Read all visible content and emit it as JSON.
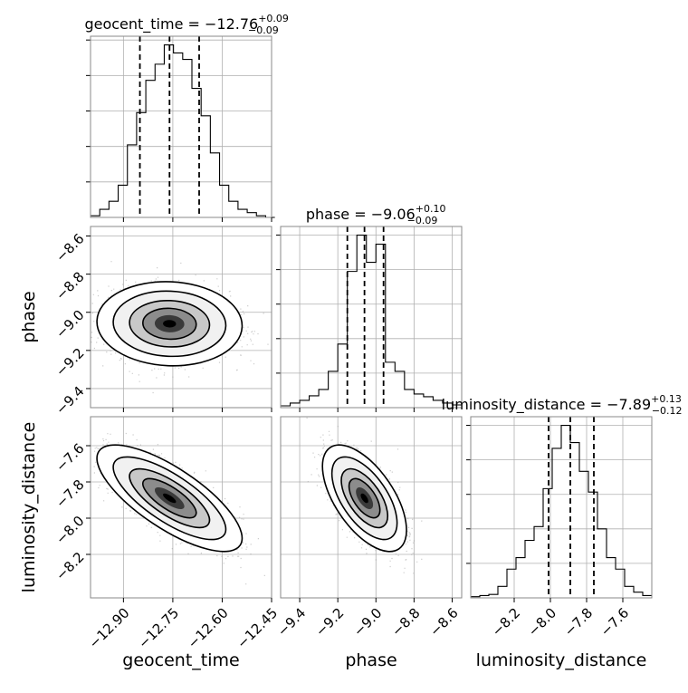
{
  "chart_data": {
    "type": "corner",
    "parameters": [
      "geocent_time",
      "phase",
      "luminosity_distance"
    ],
    "titles": [
      {
        "main": "geocent_time = −12.76",
        "plus": "+0.09",
        "minus": "−0.09"
      },
      {
        "main": "phase = −9.06",
        "plus": "+0.10",
        "minus": "−0.09"
      },
      {
        "main": "luminosity_distance = −7.89",
        "plus": "+0.13",
        "minus": "−0.12"
      }
    ],
    "xlabels": [
      "geocent_time",
      "phase",
      "luminosity_distance"
    ],
    "ylabels": [
      "phase",
      "luminosity_distance"
    ],
    "ranges": [
      [
        -13.0,
        -12.45
      ],
      [
        -9.5,
        -8.55
      ],
      [
        -8.44,
        -7.44
      ]
    ],
    "ticks": {
      "geocent_time": [
        -12.9,
        -12.75,
        -12.6,
        -12.45
      ],
      "phase": [
        -9.4,
        -9.2,
        -9.0,
        -8.8,
        -8.6
      ],
      "luminosity_distance": [
        -8.2,
        -8.0,
        -7.8,
        -7.6
      ]
    },
    "tick_labels": {
      "geocent_time": [
        "−12.90",
        "−12.75",
        "−12.60",
        "−12.45"
      ],
      "phase": [
        "−9.4",
        "−9.2",
        "−9.0",
        "−8.8",
        "−8.6"
      ],
      "luminosity_distance": [
        "−8.2",
        "−8.0",
        "−7.8",
        "−7.6"
      ]
    },
    "quantiles": {
      "geocent_time": [
        -12.85,
        -12.76,
        -12.67
      ],
      "phase": [
        -9.15,
        -9.06,
        -8.96
      ],
      "luminosity_distance": [
        -8.01,
        -7.89,
        -7.76
      ]
    },
    "histograms": {
      "geocent_time": {
        "edges": [
          -13.0,
          -12.972,
          -12.944,
          -12.916,
          -12.888,
          -12.86,
          -12.832,
          -12.804,
          -12.776,
          -12.748,
          -12.72,
          -12.692,
          -12.664,
          -12.636,
          -12.608,
          -12.58,
          -12.552,
          -12.524,
          -12.496,
          -12.468,
          -12.44
        ],
        "counts": [
          1,
          5,
          10,
          20,
          45,
          65,
          85,
          95,
          107,
          102,
          98,
          80,
          63,
          40,
          20,
          10,
          5,
          3,
          1,
          0
        ]
      },
      "phase": {
        "edges": [
          -9.5,
          -9.45,
          -9.4,
          -9.35,
          -9.3,
          -9.25,
          -9.2,
          -9.15,
          -9.1,
          -9.05,
          -9.0,
          -8.95,
          -8.9,
          -8.85,
          -8.8,
          -8.75,
          -8.7,
          -8.65,
          -8.6,
          -8.55
        ],
        "counts": [
          2,
          5,
          8,
          13,
          20,
          40,
          70,
          150,
          190,
          160,
          180,
          50,
          40,
          20,
          15,
          12,
          8,
          5,
          3
        ]
      },
      "luminosity_distance": {
        "edges": [
          -8.44,
          -8.39,
          -8.34,
          -8.29,
          -8.24,
          -8.19,
          -8.14,
          -8.09,
          -8.04,
          -7.99,
          -7.94,
          -7.89,
          -7.84,
          -7.79,
          -7.74,
          -7.69,
          -7.64,
          -7.59,
          -7.54,
          -7.49,
          -7.44
        ],
        "counts": [
          1,
          2,
          3,
          10,
          25,
          35,
          50,
          62,
          95,
          130,
          150,
          135,
          110,
          92,
          60,
          35,
          25,
          10,
          5,
          2
        ]
      }
    },
    "scatter_2d": {
      "phase_vs_geocent_time": {
        "mean": [
          -12.76,
          -9.06
        ],
        "sd": [
          0.09,
          0.09
        ],
        "corr": -0.05
      },
      "luminosity_distance_vs_geocent_time": {
        "mean": [
          -12.76,
          -7.89
        ],
        "sd": [
          0.09,
          0.12
        ],
        "corr": -0.75
      },
      "luminosity_distance_vs_phase": {
        "mean": [
          -9.06,
          -7.89
        ],
        "sd": [
          0.09,
          0.12
        ],
        "corr": -0.6
      }
    },
    "grid": true
  }
}
